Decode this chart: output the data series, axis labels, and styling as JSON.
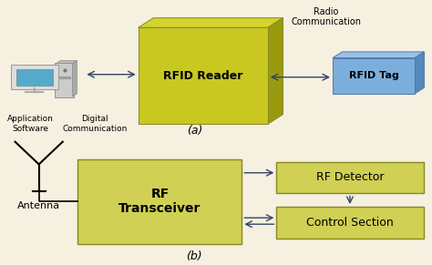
{
  "bg_color": "#f5f0e0",
  "olive_front": "#c8c820",
  "olive_top": "#d4d430",
  "olive_right": "#9a9a10",
  "olive_light": "#d0d055",
  "blue_front": "#7aaedd",
  "blue_top": "#99c2e8",
  "blue_right": "#5588bb",
  "box_border": "#888820",
  "blue_border": "#5577aa",
  "arrow_color": "#334466",
  "top_label": "(a)",
  "bottom_label": "(b)",
  "rfid_reader_text": "RFID Reader",
  "rfid_tag_text": "RFID Tag",
  "radio_comm_text": "Radio\nCommunication",
  "app_software_text": "Application\nSoftware",
  "digital_comm_text": "Digital\nCommunication",
  "antenna_text": "Antenna",
  "rf_transceiver_text": "RF\nTransceiver",
  "rf_detector_text": "RF Detector",
  "control_section_text": "Control Section"
}
